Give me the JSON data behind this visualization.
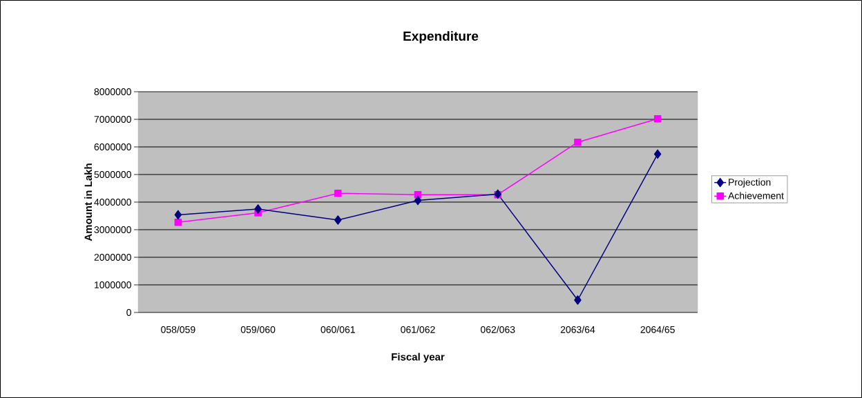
{
  "chart_data": {
    "type": "line",
    "title": "Expenditure",
    "xlabel": "Fiscal year",
    "ylabel": "Amount in Lakh",
    "categories": [
      "058/059",
      "059/060",
      "060/061",
      "061/062",
      "062/063",
      "2063/64",
      "2064/65"
    ],
    "series": [
      {
        "name": "Projection",
        "color": "#000080",
        "marker": "diamond",
        "values": [
          3540000,
          3750000,
          3350000,
          4060000,
          4290000,
          450000,
          5740000
        ]
      },
      {
        "name": "Achievement",
        "color": "#ff00ff",
        "marker": "square",
        "values": [
          3270000,
          3610000,
          4320000,
          4270000,
          4270000,
          6170000,
          7020000
        ]
      }
    ],
    "ylim": [
      0,
      8000000
    ],
    "yticks": [
      0,
      1000000,
      2000000,
      3000000,
      4000000,
      5000000,
      6000000,
      7000000,
      8000000
    ],
    "grid": "y",
    "legend": "right",
    "line_style": "solid"
  }
}
